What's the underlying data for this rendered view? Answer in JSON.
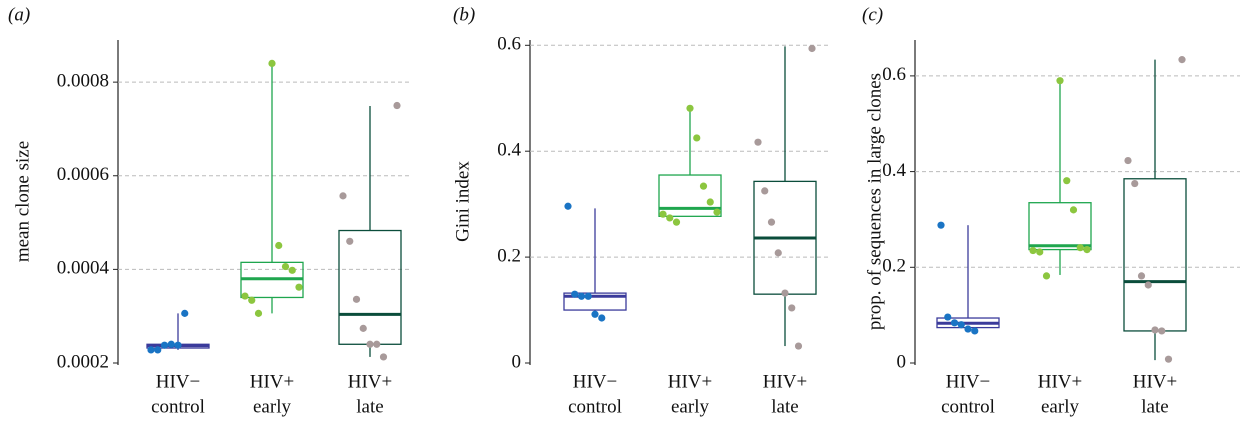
{
  "chart_data": [
    {
      "type": "box",
      "panel_label": "(a)",
      "y_label": "mean clone size",
      "ylim": [
        0.0002,
        0.00089
      ],
      "yticks": [
        0.0002,
        0.0004,
        0.0006,
        0.0008
      ],
      "grid": true,
      "categories": [
        [
          "HIV−",
          "control"
        ],
        [
          "HIV+",
          "early"
        ],
        [
          "HIV+",
          "late"
        ]
      ],
      "label_colors": [
        "#3b3b9b",
        "#1fa64e",
        "#111111"
      ],
      "boxes": [
        {
          "color": "#3b3b9b",
          "point_color": "#1a74c4",
          "min": 0.000228,
          "q1": 0.000232,
          "median": 0.000237,
          "q3": 0.00024,
          "max": 0.000306,
          "points": [
            0.000228,
            0.000228,
            0.000238,
            0.00024,
            0.000238,
            0.000306
          ]
        },
        {
          "color": "#1fa64e",
          "point_color": "#8cc63f",
          "min": 0.000306,
          "q1": 0.00034,
          "median": 0.00038,
          "q3": 0.000415,
          "max": 0.00084,
          "points": [
            0.00084,
            0.000451,
            0.000406,
            0.000398,
            0.000362,
            0.000343,
            0.000334,
            0.000306
          ]
        },
        {
          "color": "#0b4d3b",
          "point_color": "#a89a9a",
          "min": 0.000213,
          "q1": 0.00024,
          "median": 0.000304,
          "q3": 0.000483,
          "max": 0.000749,
          "points": [
            0.00075,
            0.000557,
            0.00046,
            0.000336,
            0.000274,
            0.00024,
            0.00024,
            0.000213
          ]
        }
      ]
    },
    {
      "type": "box",
      "panel_label": "(b)",
      "y_label": "Gini index",
      "ylim": [
        0,
        0.61
      ],
      "yticks": [
        0,
        0.2,
        0.4,
        0.6
      ],
      "grid": true,
      "categories": [
        [
          "HIV−",
          "control"
        ],
        [
          "HIV+",
          "early"
        ],
        [
          "HIV+",
          "late"
        ]
      ],
      "label_colors": [
        "#3b3b9b",
        "#1fa64e",
        "#111111"
      ],
      "boxes": [
        {
          "color": "#3b3b9b",
          "point_color": "#1a74c4",
          "min": 0.089,
          "q1": 0.1,
          "median": 0.126,
          "q3": 0.132,
          "max": 0.292,
          "points": [
            0.296,
            0.13,
            0.126,
            0.126,
            0.092,
            0.085
          ]
        },
        {
          "color": "#1fa64e",
          "point_color": "#8cc63f",
          "min": 0.277,
          "q1": 0.277,
          "median": 0.292,
          "q3": 0.355,
          "max": 0.481,
          "points": [
            0.481,
            0.425,
            0.334,
            0.304,
            0.285,
            0.281,
            0.274,
            0.266
          ]
        },
        {
          "color": "#0b4d3b",
          "point_color": "#a89a9a",
          "min": 0.032,
          "q1": 0.13,
          "median": 0.236,
          "q3": 0.343,
          "max": 0.598,
          "points": [
            0.594,
            0.417,
            0.325,
            0.266,
            0.208,
            0.132,
            0.104,
            0.032
          ]
        }
      ]
    },
    {
      "type": "box",
      "panel_label": "(c)",
      "y_label": "prop. of sequences in large clones",
      "ylim": [
        0,
        0.675
      ],
      "yticks": [
        0,
        0.2,
        0.4,
        0.6
      ],
      "grid": true,
      "categories": [
        [
          "HIV−",
          "control"
        ],
        [
          "HIV+",
          "early"
        ],
        [
          "HIV+",
          "late"
        ]
      ],
      "label_colors": [
        "#3b3b9b",
        "#1fa64e",
        "#111111"
      ],
      "boxes": [
        {
          "color": "#3b3b9b",
          "point_color": "#1a74c4",
          "min": 0.065,
          "q1": 0.074,
          "median": 0.083,
          "q3": 0.094,
          "max": 0.288,
          "points": [
            0.288,
            0.096,
            0.084,
            0.08,
            0.071,
            0.067
          ]
        },
        {
          "color": "#1fa64e",
          "point_color": "#8cc63f",
          "min": 0.184,
          "q1": 0.237,
          "median": 0.245,
          "q3": 0.335,
          "max": 0.586,
          "points": [
            0.59,
            0.381,
            0.32,
            0.241,
            0.237,
            0.235,
            0.232,
            0.182
          ]
        },
        {
          "color": "#0b4d3b",
          "point_color": "#a89a9a",
          "min": 0.006,
          "q1": 0.067,
          "median": 0.17,
          "q3": 0.385,
          "max": 0.634,
          "points": [
            0.634,
            0.423,
            0.375,
            0.182,
            0.163,
            0.069,
            0.067,
            0.008
          ]
        }
      ]
    }
  ]
}
